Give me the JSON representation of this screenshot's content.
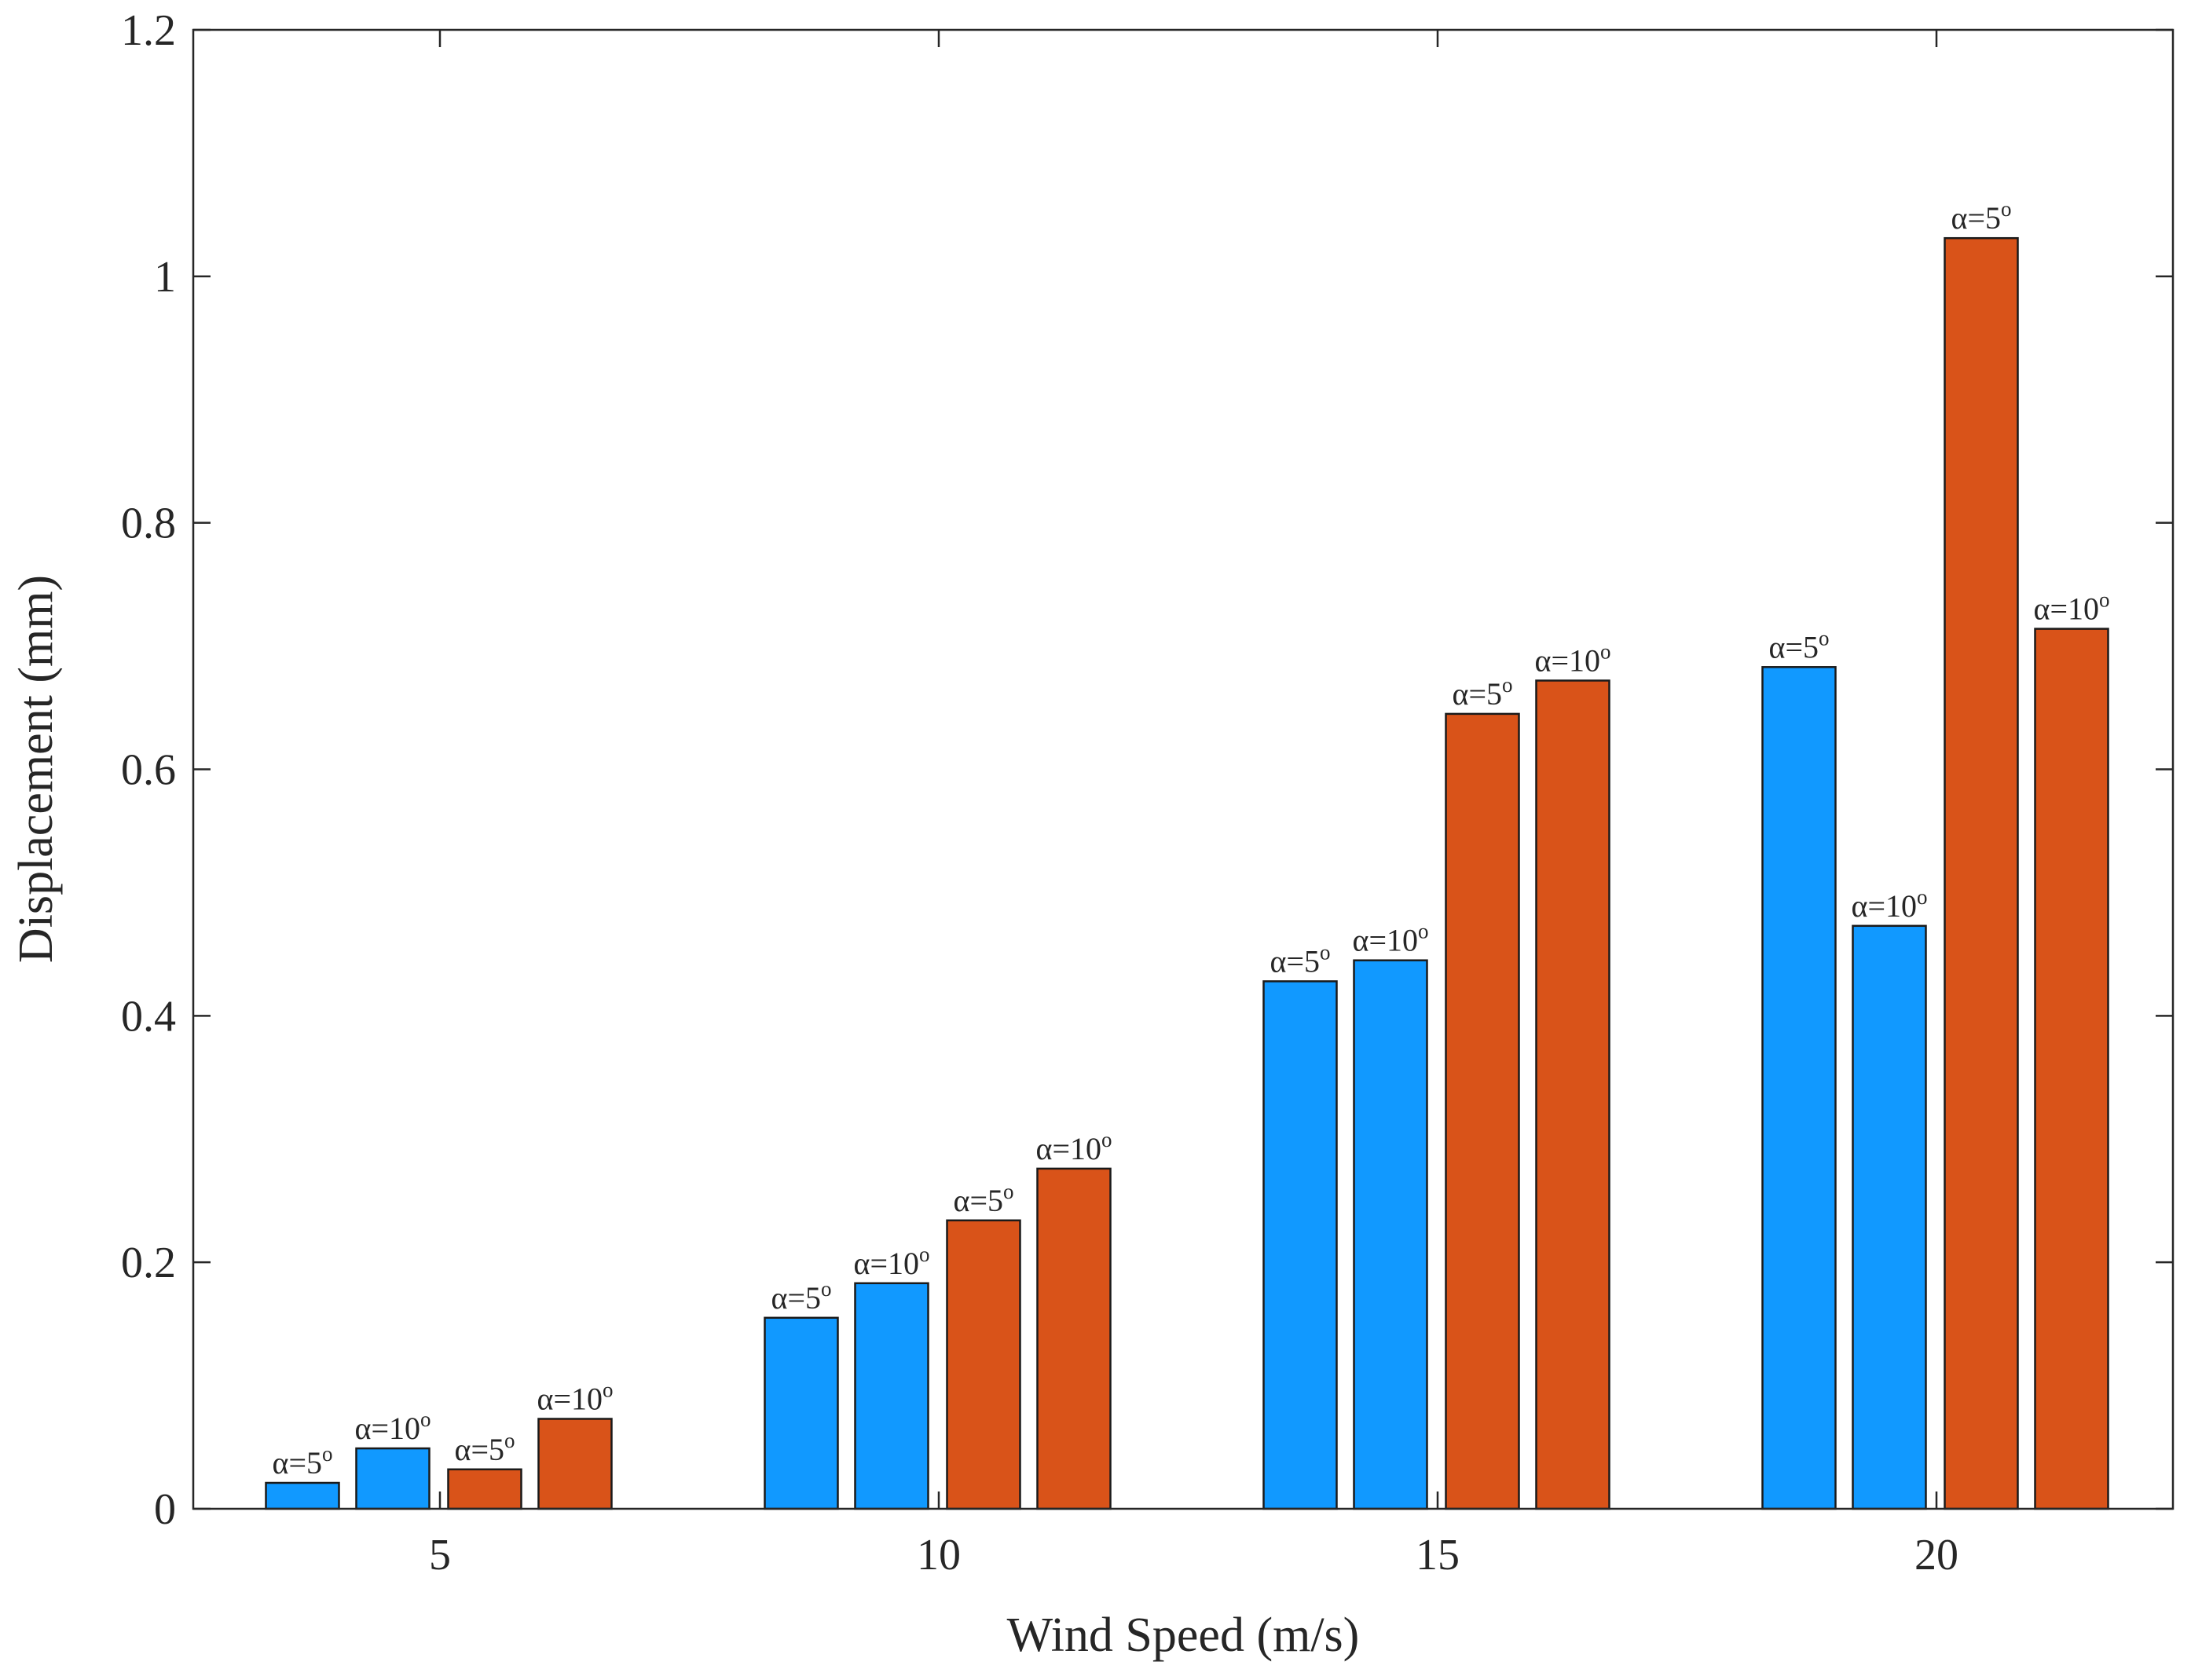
{
  "chart_data": {
    "type": "bar",
    "title": "",
    "xlabel": "Wind Speed  (m/s)",
    "ylabel": "Displacement  (mm)",
    "ylim": [
      0,
      1.2
    ],
    "yticks": [
      "0",
      "0.2",
      "0.4",
      "0.6",
      "0.8",
      "1",
      "1.2"
    ],
    "ytick_values": [
      0,
      0.2,
      0.4,
      0.6,
      0.8,
      1.0,
      1.2
    ],
    "categories": [
      "5",
      "10",
      "15",
      "20"
    ],
    "grid": false,
    "legend": "none",
    "series": [
      {
        "name": "α=5°",
        "color": "#1199FF",
        "label_base": "α=5",
        "label_sup": "o",
        "values": [
          0.021,
          0.155,
          0.428,
          0.683
        ]
      },
      {
        "name": "α=10°",
        "color": "#1199FF",
        "label_base": "α=10",
        "label_sup": "o",
        "values": [
          0.049,
          0.183,
          0.445,
          0.473
        ]
      },
      {
        "name": "α=5°",
        "color": "#D95319",
        "label_base": "α=5",
        "label_sup": "o",
        "values": [
          0.032,
          0.234,
          0.645,
          1.031
        ]
      },
      {
        "name": "α=10°",
        "color": "#D95319",
        "label_base": "α=10",
        "label_sup": "o",
        "values": [
          0.073,
          0.276,
          0.672,
          0.714
        ]
      }
    ]
  }
}
